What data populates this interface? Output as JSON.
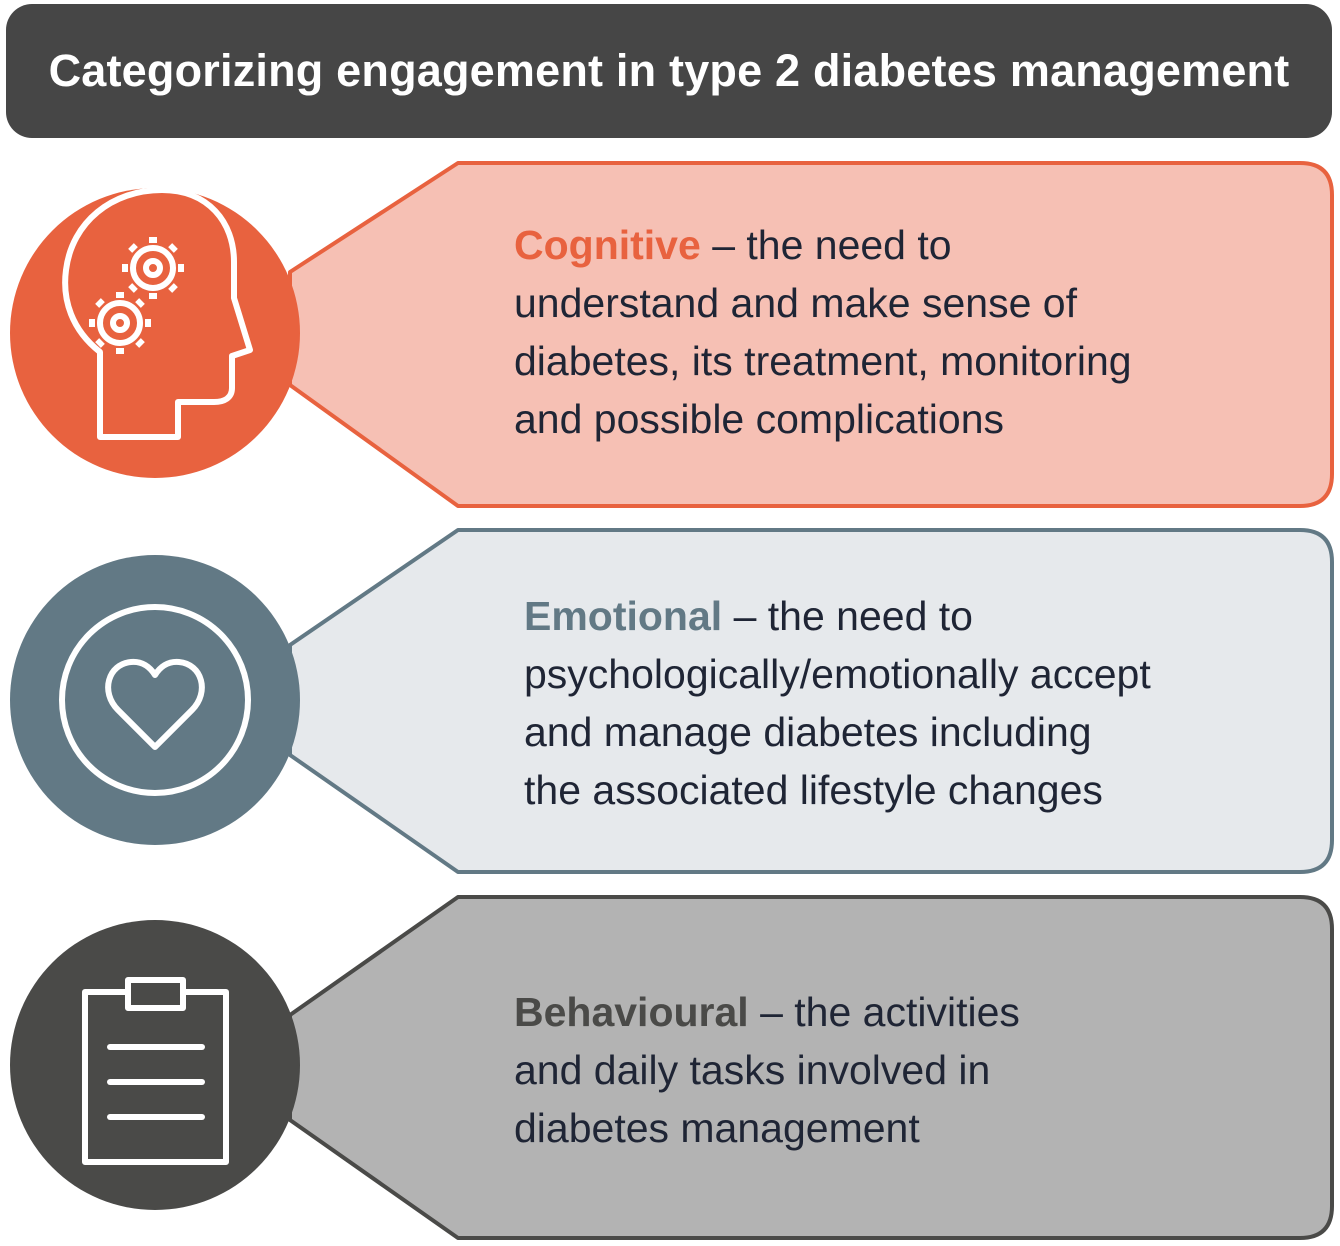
{
  "title": "Categorizing engagement in type 2 diabetes management",
  "categories": [
    {
      "term": "Cognitive",
      "rest": " – the need to",
      "lines": [
        "understand and make sense of",
        "diabetes, its treatment, monitoring",
        "and possible complications"
      ],
      "icon": "head-gears-icon",
      "accent": "#e8623f",
      "fill": "#f6c0b4",
      "border": "#e8623f"
    },
    {
      "term": "Emotional",
      "rest": " – the need to",
      "lines": [
        "psychologically/emotionally accept",
        "and manage diabetes including",
        "the associated lifestyle changes"
      ],
      "icon": "heart-icon",
      "accent": "#627985",
      "fill": "#e6e9ec",
      "border": "#627985"
    },
    {
      "term": "Behavioural",
      "rest": " – the activities",
      "lines": [
        "and daily tasks involved in",
        "diabetes management"
      ],
      "icon": "clipboard-icon",
      "accent": "#4a4a48",
      "fill": "#b3b3b3",
      "border": "#4a4a48"
    }
  ]
}
